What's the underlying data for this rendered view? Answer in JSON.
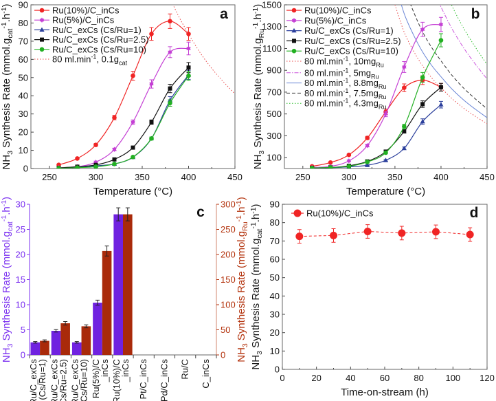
{
  "chart_data": [
    {
      "type": "line",
      "panel_label": "a",
      "xlabel": [
        [
          "Temperature (°C)",
          ""
        ]
      ],
      "ylabel": [
        [
          "NH",
          ""
        ],
        [
          "3",
          "sub"
        ],
        [
          " Synthesis Rate (mmol.g",
          ""
        ],
        [
          "cat",
          "sub"
        ],
        [
          "-1",
          "sup"
        ],
        [
          ".h",
          ""
        ],
        [
          "-1",
          "sup"
        ],
        [
          ")",
          ""
        ]
      ],
      "xlim": [
        230,
        450
      ],
      "ylim": [
        0,
        90
      ],
      "xticks": [
        250,
        300,
        350,
        400,
        450
      ],
      "yticks": [
        0,
        10,
        20,
        30,
        40,
        50,
        60,
        70,
        80,
        90
      ],
      "legend_placement": "top-left",
      "series": [
        {
          "name": [
            [
              "Ru(10%)/C_inCs",
              ""
            ]
          ],
          "color": "#f02424",
          "marker": "circle",
          "x": [
            260,
            280,
            300,
            320,
            340,
            360,
            380,
            400
          ],
          "y": [
            2,
            5.5,
            13,
            28,
            51,
            74,
            81,
            74
          ],
          "err": [
            0.5,
            0.5,
            0.7,
            1.2,
            2.5,
            3.5,
            4,
            3.5
          ]
        },
        {
          "name": [
            [
              "Ru(5%)/C_inCs",
              ""
            ]
          ],
          "color": "#c43fd4",
          "marker": "star",
          "x": [
            260,
            280,
            300,
            320,
            340,
            360,
            380,
            400
          ],
          "y": [
            0.5,
            1,
            3.5,
            10.5,
            25.5,
            46.5,
            64,
            66
          ],
          "err": [
            0.3,
            0.3,
            0.5,
            0.7,
            1.2,
            2.3,
            3,
            3.5
          ]
        },
        {
          "name": [
            [
              "Ru/C_exCs (Cs/Ru=1)",
              ""
            ]
          ],
          "color": "#2b3f9c",
          "marker": "triangle",
          "x": [
            260,
            280,
            300,
            320,
            340,
            360,
            380,
            400
          ],
          "y": [
            0.2,
            0.5,
            1.5,
            2.5,
            6.2,
            16.5,
            37.5,
            51.5
          ],
          "err": [
            0.2,
            0.2,
            0.3,
            0.5,
            0.5,
            0.8,
            2,
            2.5
          ]
        },
        {
          "name": [
            [
              "Ru/C_exCs (Cs/Ru=2.5)",
              ""
            ]
          ],
          "color": "#111111",
          "marker": "square",
          "x": [
            260,
            280,
            300,
            320,
            340,
            360,
            380,
            400
          ],
          "y": [
            0.3,
            1,
            2,
            5,
            11.5,
            25.5,
            44,
            55.5
          ],
          "err": [
            0.2,
            0.2,
            0.3,
            0.5,
            0.6,
            1.2,
            2.3,
            2.8
          ]
        },
        {
          "name": [
            [
              "Ru/C_exCs (Cs/Ru=10)",
              ""
            ]
          ],
          "color": "#22b022",
          "marker": "circle",
          "x": [
            260,
            280,
            300,
            320,
            340,
            360,
            380,
            400
          ],
          "y": [
            0.2,
            0.5,
            1,
            2.5,
            6.3,
            16.5,
            36,
            51
          ],
          "err": [
            0.2,
            0.2,
            0.3,
            0.4,
            0.5,
            0.8,
            1.8,
            2.5
          ]
        }
      ],
      "reference_curves": [
        {
          "name": [
            [
              "80 ml.min",
              ""
            ],
            [
              "-1",
              "sup"
            ],
            [
              ", 0.1g",
              ""
            ],
            [
              "cat",
              "sub"
            ]
          ],
          "color": "#e84848",
          "dash": "dotted",
          "x": [
            350,
            360,
            370,
            380,
            390,
            400,
            412,
            425,
            437,
            450
          ],
          "y": [
            150,
            125,
            108,
            94,
            83,
            74,
            64,
            55,
            48,
            41
          ]
        }
      ]
    },
    {
      "type": "line",
      "panel_label": "b",
      "xlabel": [
        [
          "Temperature (°C)",
          ""
        ]
      ],
      "ylabel": [
        [
          "NH",
          ""
        ],
        [
          "3",
          "sub"
        ],
        [
          " Synthesis Rate (mmol.g",
          ""
        ],
        [
          "Ru",
          "sub"
        ],
        [
          "-1",
          "sup"
        ],
        [
          ".h",
          ""
        ],
        [
          "-1",
          "sup"
        ],
        [
          ")",
          ""
        ]
      ],
      "xlim": [
        230,
        450
      ],
      "ylim": [
        0,
        1500
      ],
      "xticks": [
        250,
        300,
        350,
        400,
        450
      ],
      "yticks": [
        100,
        300,
        500,
        700,
        900,
        1100,
        1300,
        1500
      ],
      "legend_placement": "top-left",
      "series": [
        {
          "name": [
            [
              "Ru(10%)/C_inCs",
              ""
            ]
          ],
          "color": "#f02424",
          "marker": "circle",
          "x": [
            260,
            280,
            300,
            320,
            340,
            360,
            380,
            400
          ],
          "y": [
            20,
            55,
            125,
            280,
            520,
            740,
            810,
            745
          ],
          "err": [
            5,
            5,
            8,
            15,
            25,
            35,
            40,
            35
          ]
        },
        {
          "name": [
            [
              "Ru(5%)/C_inCs",
              ""
            ]
          ],
          "color": "#c43fd4",
          "marker": "star",
          "x": [
            260,
            280,
            300,
            320,
            340,
            360,
            380,
            400
          ],
          "y": [
            10,
            20,
            70,
            210,
            500,
            930,
            1275,
            1320
          ],
          "err": [
            3,
            4,
            6,
            12,
            25,
            50,
            65,
            65
          ]
        },
        {
          "name": [
            [
              "Ru/C_exCs (Cs/Ru=1)",
              ""
            ]
          ],
          "color": "#2b3f9c",
          "marker": "triangle",
          "x": [
            260,
            280,
            300,
            320,
            340,
            360,
            380,
            400
          ],
          "y": [
            5,
            8,
            15,
            30,
            75,
            185,
            430,
            585
          ],
          "err": [
            2,
            2,
            3,
            5,
            8,
            12,
            25,
            30
          ]
        },
        {
          "name": [
            [
              "Ru/C_exCs (Cs/Ru=2.5)",
              ""
            ]
          ],
          "color": "#111111",
          "marker": "square",
          "x": [
            260,
            280,
            300,
            320,
            340,
            360,
            380,
            400
          ],
          "y": [
            5,
            10,
            25,
            65,
            155,
            340,
            590,
            745
          ],
          "err": [
            2,
            3,
            4,
            6,
            10,
            15,
            30,
            35
          ]
        },
        {
          "name": [
            [
              "Ru/C_exCs (Cs/Ru=10)",
              ""
            ]
          ],
          "color": "#22b022",
          "marker": "circle",
          "x": [
            260,
            280,
            300,
            320,
            340,
            360,
            380,
            400
          ],
          "y": [
            5,
            10,
            20,
            60,
            145,
            385,
            835,
            1175
          ],
          "err": [
            2,
            2,
            3,
            5,
            10,
            20,
            45,
            60
          ]
        }
      ],
      "reference_curves": [
        {
          "name": [
            [
              "80 ml.min",
              ""
            ],
            [
              "-1",
              "sup"
            ],
            [
              ", 10mg",
              ""
            ],
            [
              "Ru",
              "sub"
            ]
          ],
          "color": "#e84848",
          "dash": "dotted",
          "x": [
            350,
            360,
            370,
            380,
            390,
            400,
            412,
            425,
            437,
            450
          ],
          "y": [
            1500,
            1250,
            1080,
            940,
            830,
            740,
            640,
            550,
            480,
            410
          ]
        },
        {
          "name": [
            [
              "80 ml.min",
              ""
            ],
            [
              "-1",
              "sup"
            ],
            [
              ", 5mg",
              ""
            ],
            [
              "Ru",
              "sub"
            ]
          ],
          "color": "#cc55dd",
          "dash": "dashdot",
          "x": [
            350,
            360,
            370,
            380,
            390,
            400,
            412,
            425,
            437,
            450
          ],
          "y": [
            3000,
            2500,
            2160,
            1880,
            1660,
            1480,
            1280,
            1100,
            960,
            820
          ]
        },
        {
          "name": [
            [
              "80 ml.min",
              ""
            ],
            [
              "-1",
              "sup"
            ],
            [
              ", 8.8mg",
              ""
            ],
            [
              "Ru",
              "sub"
            ]
          ],
          "color": "#6a86d6",
          "dash": "solid",
          "x": [
            350,
            360,
            370,
            380,
            390,
            400,
            412,
            425,
            437,
            450
          ],
          "y": [
            1705,
            1420,
            1227,
            1068,
            943,
            841,
            727,
            625,
            545,
            466
          ]
        },
        {
          "name": [
            [
              "80 ml.min",
              ""
            ],
            [
              "-1",
              "sup"
            ],
            [
              ", 7.5mg",
              ""
            ],
            [
              "Ru",
              "sub"
            ]
          ],
          "color": "#333333",
          "dash": "dashed",
          "x": [
            350,
            360,
            370,
            380,
            390,
            400,
            412,
            425,
            437,
            450
          ],
          "y": [
            2000,
            1667,
            1440,
            1253,
            1107,
            987,
            853,
            733,
            640,
            547
          ]
        },
        {
          "name": [
            [
              "80 ml.min",
              ""
            ],
            [
              "-1",
              "sup"
            ],
            [
              ", 4.3mg",
              ""
            ],
            [
              "Ru",
              "sub"
            ]
          ],
          "color": "#30c030",
          "dash": "dotted",
          "x": [
            350,
            360,
            370,
            380,
            390,
            400,
            412,
            425,
            437,
            450
          ],
          "y": [
            3488,
            2907,
            2512,
            2186,
            1930,
            1721,
            1488,
            1279,
            1116,
            953
          ]
        }
      ]
    },
    {
      "type": "bar",
      "panel_label": "c",
      "categories": [
        [
          "Ru/C_exCs",
          "(Cs/Ru=1)"
        ],
        [
          "Ru/C_exCs",
          "(Cs/Ru=2.5)"
        ],
        [
          "Ru/C_exCs",
          "(Cs/Ru=10)"
        ],
        [
          "Ru(5%)/C",
          "_inCs"
        ],
        [
          "Ru(10%)/C",
          "_inCs"
        ],
        [
          "Pt/C_inCs"
        ],
        [
          "Pd/C_inCs"
        ],
        [
          "Ru/C"
        ],
        [
          "C_inCs"
        ]
      ],
      "ylabel": [
        [
          "NH",
          ""
        ],
        [
          "3",
          "sub"
        ],
        [
          " Synthesis Rate (mmol.g",
          ""
        ],
        [
          "cat",
          "sub"
        ],
        [
          "-1",
          "sup"
        ],
        [
          ".h",
          ""
        ],
        [
          "-1",
          "sup"
        ],
        [
          ")",
          ""
        ]
      ],
      "ylabel_right": [
        [
          "NH",
          ""
        ],
        [
          "3",
          "sub"
        ],
        [
          " Synthesis Rate (mmol.g",
          ""
        ],
        [
          "Ru",
          "sub"
        ],
        [
          "-1",
          "sup"
        ],
        [
          ".h",
          ""
        ],
        [
          "-1",
          "sup"
        ],
        [
          ")",
          ""
        ]
      ],
      "ylim": [
        0,
        30
      ],
      "yticks": [
        0,
        5,
        10,
        15,
        20,
        25,
        30
      ],
      "ylim_right": [
        0,
        300
      ],
      "yticks_right": [
        0,
        50,
        100,
        150,
        200,
        250,
        300
      ],
      "left_axis_color": "#7a2ff0",
      "right_axis_color": "#b3320c",
      "series": [
        {
          "axis": "left",
          "color": "#7022e0",
          "values": [
            2.5,
            4.8,
            2.5,
            10.4,
            28,
            0,
            0,
            0,
            0
          ],
          "err": [
            0.15,
            0.25,
            0.15,
            0.5,
            1.3,
            0,
            0,
            0,
            0
          ]
        },
        {
          "axis": "right",
          "color": "#a92a0a",
          "values": [
            28,
            63,
            57,
            207,
            280,
            0,
            0,
            0,
            0
          ],
          "err": [
            2,
            3.5,
            3,
            10,
            13,
            0,
            0,
            0,
            0
          ]
        }
      ]
    },
    {
      "type": "line",
      "panel_label": "d",
      "xlabel": [
        [
          "Time-on-stream (h)",
          ""
        ]
      ],
      "ylabel": [
        [
          "NH",
          ""
        ],
        [
          "3",
          "sub"
        ],
        [
          " Synthesis Rate (mmol.g",
          ""
        ],
        [
          "cat",
          "sub"
        ],
        [
          "-1",
          "sup"
        ],
        [
          ".h",
          ""
        ],
        [
          "-1",
          "sup"
        ],
        [
          ")",
          ""
        ]
      ],
      "xlim": [
        0,
        120
      ],
      "ylim": [
        0,
        90
      ],
      "xticks": [
        0,
        20,
        40,
        60,
        80,
        100,
        120
      ],
      "yticks": [
        0,
        10,
        20,
        30,
        40,
        50,
        60,
        70,
        80,
        90
      ],
      "legend_placement": "top-left",
      "series": [
        {
          "name": [
            [
              "Ru(10%)/C_inCs",
              ""
            ]
          ],
          "color": "#f02424",
          "marker": "bigcircle",
          "line": "dashed",
          "x": [
            10,
            30,
            50,
            70,
            90,
            110
          ],
          "y": [
            72.5,
            73,
            75.2,
            74.3,
            75,
            73.5
          ],
          "err": [
            3.7,
            3.7,
            3.7,
            3.7,
            3.7,
            3.7
          ]
        }
      ],
      "reference_curves": []
    }
  ]
}
